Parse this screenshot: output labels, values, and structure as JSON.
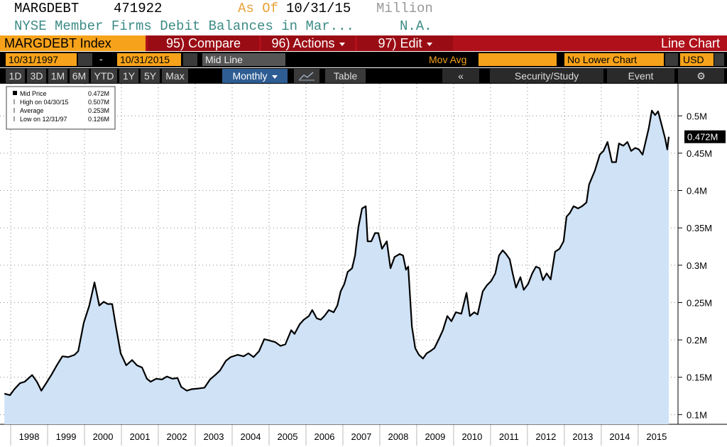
{
  "header": {
    "ticker": "MARGDEBT",
    "value": "471922",
    "as_of_label": "As Of",
    "as_of": "10/31/15",
    "units": "Million",
    "description": "NYSE Member Firms Debit Balances in Mar...",
    "units_note": "N.A."
  },
  "toolbar": {
    "security": "MARGDEBT Index",
    "compare": "95) Compare",
    "actions": "96) Actions",
    "edit": "97) Edit",
    "chart_type": "Line Chart"
  },
  "controls": {
    "start_date": "10/31/1997",
    "dash": "-",
    "end_date": "10/31/2015",
    "line_type": "Mid Line",
    "mov_avg": "Mov Avg",
    "lower_chart": "No Lower Chart",
    "currency": "USD"
  },
  "periods": [
    "1D",
    "3D",
    "1M",
    "6M",
    "YTD",
    "1Y",
    "5Y",
    "Max"
  ],
  "frequency": "Monthly",
  "table_button": "Table",
  "nav": {
    "back": "«",
    "study": "Security/Study",
    "event": "Event",
    "settings": "⚙"
  },
  "chart_data": {
    "type": "line",
    "x": [
      1997.83,
      1997.98,
      1998.1,
      1998.25,
      1998.38,
      1998.58,
      1998.71,
      1998.83,
      1998.96,
      1999.1,
      1999.25,
      1999.4,
      1999.56,
      1999.73,
      1999.83,
      1999.98,
      2000.13,
      2000.27,
      2000.4,
      2000.52,
      2000.63,
      2000.75,
      2000.85,
      2000.98,
      2001.13,
      2001.29,
      2001.42,
      2001.56,
      2001.69,
      2001.79,
      2001.94,
      2002.1,
      2002.23,
      2002.38,
      2002.52,
      2002.62,
      2002.77,
      2002.9,
      2003.1,
      2003.25,
      2003.4,
      2003.54,
      2003.67,
      2003.83,
      2003.96,
      2004.15,
      2004.31,
      2004.44,
      2004.58,
      2004.73,
      2004.87,
      2005.02,
      2005.17,
      2005.31,
      2005.44,
      2005.6,
      2005.69,
      2005.83,
      2005.94,
      2006.08,
      2006.17,
      2006.29,
      2006.4,
      2006.5,
      2006.62,
      2006.75,
      2006.85,
      2006.94,
      2007.04,
      2007.13,
      2007.25,
      2007.33,
      2007.42,
      2007.52,
      2007.62,
      2007.67,
      2007.77,
      2007.87,
      2007.96,
      2008.06,
      2008.19,
      2008.29,
      2008.4,
      2008.54,
      2008.63,
      2008.71,
      2008.77,
      2008.87,
      2008.96,
      2009.06,
      2009.17,
      2009.27,
      2009.37,
      2009.48,
      2009.6,
      2009.71,
      2009.83,
      2009.94,
      2010.06,
      2010.21,
      2010.35,
      2010.44,
      2010.56,
      2010.65,
      2010.79,
      2010.9,
      2011.02,
      2011.13,
      2011.23,
      2011.33,
      2011.42,
      2011.52,
      2011.6,
      2011.69,
      2011.81,
      2011.9,
      2012.02,
      2012.13,
      2012.23,
      2012.33,
      2012.42,
      2012.52,
      2012.63,
      2012.75,
      2012.87,
      2012.98,
      2013.06,
      2013.15,
      2013.25,
      2013.37,
      2013.48,
      2013.6,
      2013.67,
      2013.83,
      2013.96,
      2014.06,
      2014.17,
      2014.29,
      2014.4,
      2014.48,
      2014.6,
      2014.71,
      2014.81,
      2014.92,
      2015.02,
      2015.12,
      2015.21,
      2015.29,
      2015.37,
      2015.46,
      2015.54,
      2015.63,
      2015.73,
      2015.79,
      2015.83
    ],
    "series": [
      {
        "name": "Mid Price",
        "color": "#000000",
        "fill_color": "#cfe2f6",
        "values": [
          0.128,
          0.126,
          0.134,
          0.142,
          0.144,
          0.153,
          0.144,
          0.132,
          0.142,
          0.153,
          0.166,
          0.178,
          0.177,
          0.18,
          0.185,
          0.223,
          0.246,
          0.277,
          0.246,
          0.251,
          0.248,
          0.248,
          0.218,
          0.182,
          0.166,
          0.173,
          0.166,
          0.163,
          0.148,
          0.144,
          0.148,
          0.147,
          0.151,
          0.148,
          0.149,
          0.137,
          0.132,
          0.134,
          0.135,
          0.136,
          0.147,
          0.153,
          0.159,
          0.172,
          0.177,
          0.18,
          0.178,
          0.182,
          0.177,
          0.185,
          0.201,
          0.199,
          0.197,
          0.192,
          0.194,
          0.213,
          0.208,
          0.221,
          0.227,
          0.232,
          0.24,
          0.229,
          0.227,
          0.232,
          0.24,
          0.237,
          0.246,
          0.265,
          0.275,
          0.291,
          0.296,
          0.313,
          0.351,
          0.376,
          0.379,
          0.332,
          0.332,
          0.343,
          0.343,
          0.322,
          0.332,
          0.296,
          0.311,
          0.315,
          0.313,
          0.294,
          0.298,
          0.218,
          0.189,
          0.18,
          0.175,
          0.182,
          0.185,
          0.189,
          0.201,
          0.213,
          0.232,
          0.225,
          0.237,
          0.235,
          0.263,
          0.232,
          0.237,
          0.234,
          0.265,
          0.273,
          0.279,
          0.289,
          0.313,
          0.32,
          0.315,
          0.308,
          0.289,
          0.27,
          0.284,
          0.267,
          0.275,
          0.289,
          0.298,
          0.296,
          0.28,
          0.289,
          0.281,
          0.318,
          0.322,
          0.332,
          0.365,
          0.37,
          0.379,
          0.376,
          0.379,
          0.384,
          0.408,
          0.427,
          0.448,
          0.453,
          0.465,
          0.438,
          0.438,
          0.463,
          0.46,
          0.465,
          0.453,
          0.457,
          0.455,
          0.448,
          0.467,
          0.484,
          0.507,
          0.501,
          0.506,
          0.489,
          0.47,
          0.455,
          0.472
        ],
        "last_value": 0.472,
        "last_value_label": "0.472M"
      }
    ],
    "stats": [
      {
        "label": "High on 04/30/15",
        "value": 0.507,
        "value_label": "0.507M"
      },
      {
        "label": "Average",
        "value": 0.253,
        "value_label": "0.253M"
      },
      {
        "label": "Low on 12/31/97",
        "value": 0.126,
        "value_label": "0.126M"
      }
    ],
    "xlim": [
      1997.71,
      2016.08
    ],
    "xticks": [
      {
        "value": 1998,
        "label": "1998"
      },
      {
        "value": 1999,
        "label": "1999"
      },
      {
        "value": 2000,
        "label": "2000"
      },
      {
        "value": 2001,
        "label": "2001"
      },
      {
        "value": 2002,
        "label": "2002"
      },
      {
        "value": 2003,
        "label": "2003"
      },
      {
        "value": 2004,
        "label": "2004"
      },
      {
        "value": 2005,
        "label": "2005"
      },
      {
        "value": 2006,
        "label": "2006"
      },
      {
        "value": 2007,
        "label": "2007"
      },
      {
        "value": 2008,
        "label": "2008"
      },
      {
        "value": 2009,
        "label": "2009"
      },
      {
        "value": 2010,
        "label": "2010"
      },
      {
        "value": 2011,
        "label": "2011"
      },
      {
        "value": 2012,
        "label": "2012"
      },
      {
        "value": 2013,
        "label": "2013"
      },
      {
        "value": 2014,
        "label": "2014"
      },
      {
        "value": 2015,
        "label": "2015"
      }
    ],
    "ylim": [
      0.087,
      0.543
    ],
    "yticks": [
      {
        "value": 0.1,
        "label": "0.1M"
      },
      {
        "value": 0.15,
        "label": "0.15M"
      },
      {
        "value": 0.2,
        "label": "0.2M"
      },
      {
        "value": 0.25,
        "label": "0.25M"
      },
      {
        "value": 0.3,
        "label": "0.3M"
      },
      {
        "value": 0.35,
        "label": "0.35M"
      },
      {
        "value": 0.4,
        "label": "0.4M"
      },
      {
        "value": 0.45,
        "label": "0.45M"
      },
      {
        "value": 0.5,
        "label": "0.5M"
      }
    ],
    "grid": true
  }
}
